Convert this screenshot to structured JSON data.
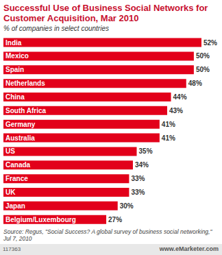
{
  "chart_data": {
    "type": "bar",
    "title": "Successful Use of Business Social Networks for Customer Acquisition, Mar 2010",
    "subtitle": "% of companies in select countries",
    "orientation": "horizontal",
    "categories": [
      "India",
      "Mexico",
      "Spain",
      "Netherlands",
      "China",
      "South Africa",
      "Germany",
      "Australia",
      "US",
      "Canada",
      "France",
      "UK",
      "Japan",
      "Belgium/Luxembourg"
    ],
    "values": [
      52,
      50,
      50,
      48,
      44,
      43,
      41,
      41,
      35,
      34,
      33,
      33,
      30,
      27
    ],
    "value_labels": [
      "52%",
      "50%",
      "50%",
      "48%",
      "44%",
      "43%",
      "41%",
      "41%",
      "35%",
      "34%",
      "33%",
      "33%",
      "30%",
      "27%"
    ],
    "color": "#e2001a",
    "data_labels": true,
    "tick_labels": false,
    "source": "Source: Regus, \"Social Success? A global survey of business social networking,\" Jul 7, 2010",
    "annotations": [
      "117363",
      "www.eMarketer.com"
    ]
  }
}
